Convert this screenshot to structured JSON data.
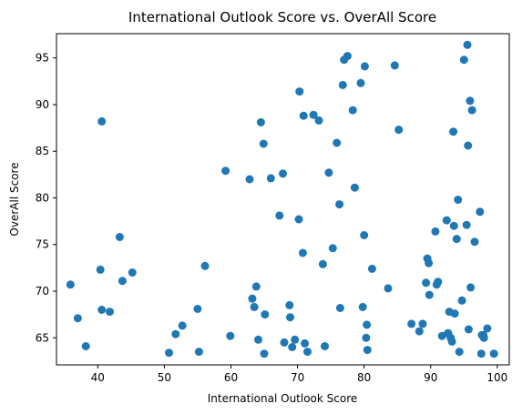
{
  "chart_data": {
    "type": "scatter",
    "title": "International Outlook Score vs. OverAll Score",
    "xlabel": "International Outlook Score",
    "ylabel": "OverAll Score",
    "xlim": [
      33.8,
      101.8
    ],
    "ylim": [
      62.1,
      97.6
    ],
    "xticks": [
      40,
      50,
      60,
      70,
      80,
      90,
      100
    ],
    "yticks": [
      65,
      70,
      75,
      80,
      85,
      90,
      95
    ],
    "grid": false,
    "color": "#1f77b4",
    "x": [
      40.6,
      35.9,
      37.0,
      38.2,
      40.4,
      40.6,
      41.8,
      43.3,
      43.7,
      45.2,
      50.7,
      51.7,
      52.7,
      55.0,
      55.2,
      56.1,
      59.2,
      59.9,
      62.8,
      63.2,
      63.5,
      63.8,
      64.1,
      64.5,
      64.9,
      65.0,
      65.1,
      66.0,
      67.3,
      67.8,
      68.0,
      68.8,
      68.9,
      69.2,
      69.6,
      70.2,
      70.3,
      70.8,
      70.9,
      71.1,
      71.5,
      72.4,
      73.2,
      73.8,
      74.1,
      74.7,
      75.3,
      75.9,
      76.3,
      76.4,
      76.8,
      77.0,
      77.5,
      78.3,
      78.6,
      79.5,
      79.8,
      80.0,
      80.1,
      80.3,
      80.4,
      80.5,
      81.2,
      83.6,
      84.6,
      85.2,
      87.1,
      88.3,
      88.8,
      89.3,
      89.5,
      89.7,
      89.8,
      90.7,
      90.9,
      91.1,
      91.7,
      92.4,
      92.6,
      92.8,
      93.0,
      93.2,
      93.4,
      93.5,
      93.6,
      93.9,
      94.1,
      94.3,
      94.7,
      95.0,
      95.4,
      95.5,
      95.6,
      95.7,
      95.9,
      96.0,
      96.2,
      96.6,
      97.4,
      97.6,
      97.7,
      97.9,
      98.0,
      98.5,
      99.5
    ],
    "y": [
      88.2,
      70.7,
      67.1,
      64.1,
      72.3,
      68.0,
      67.8,
      75.8,
      71.1,
      72.0,
      63.4,
      65.4,
      66.3,
      68.1,
      63.5,
      72.7,
      82.9,
      65.2,
      82.0,
      69.2,
      68.3,
      70.5,
      64.8,
      88.1,
      85.8,
      63.3,
      67.5,
      82.1,
      78.1,
      82.6,
      64.5,
      68.5,
      67.2,
      64.0,
      64.8,
      77.7,
      91.4,
      74.1,
      88.8,
      64.4,
      63.5,
      88.9,
      88.3,
      72.9,
      64.1,
      82.7,
      74.6,
      85.9,
      79.3,
      68.2,
      92.1,
      94.8,
      95.2,
      89.4,
      81.1,
      92.3,
      68.3,
      76.0,
      94.1,
      65.0,
      66.4,
      63.7,
      72.4,
      70.3,
      94.2,
      87.3,
      66.5,
      65.7,
      66.5,
      70.9,
      73.5,
      73.0,
      69.6,
      76.4,
      70.7,
      71.0,
      65.2,
      77.6,
      65.5,
      67.8,
      65.0,
      64.6,
      87.1,
      77.0,
      67.6,
      75.6,
      79.8,
      63.5,
      69.0,
      94.8,
      77.1,
      96.4,
      85.6,
      65.9,
      90.4,
      70.4,
      89.4,
      75.3,
      78.5,
      63.3,
      65.3,
      65.3,
      65.0,
      66.0,
      63.3
    ]
  }
}
